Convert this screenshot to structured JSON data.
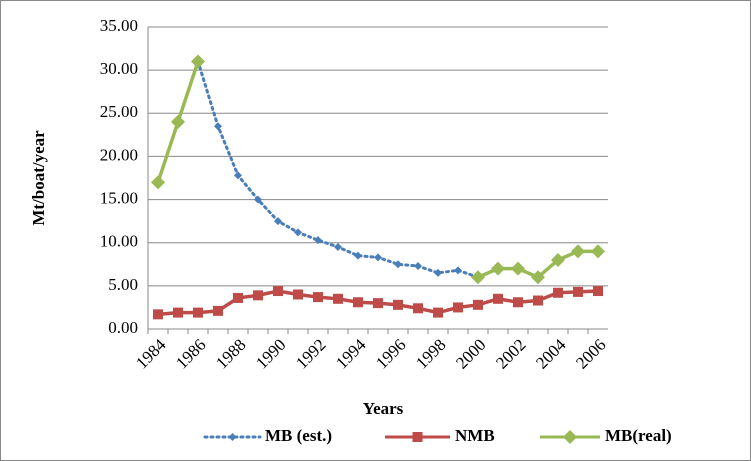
{
  "chart_data": {
    "type": "line",
    "y_label": "Mt/boat/year",
    "x_label": "Years",
    "categories": [
      "1984",
      null,
      "1986",
      null,
      "1988",
      null,
      "1990",
      null,
      "1992",
      null,
      "1994",
      null,
      "1996",
      null,
      "1998",
      null,
      "2000",
      null,
      "2002",
      null,
      "2004",
      null,
      "2006"
    ],
    "series": [
      {
        "name": "MB (est.)",
        "color": "#4a7ebb",
        "style": "dotted",
        "marker": "diamond-small",
        "values": [
          null,
          null,
          31,
          23.5,
          17.8,
          15,
          12.5,
          11.2,
          10.3,
          9.5,
          8.5,
          8.3,
          7.5,
          7.3,
          6.5,
          6.8,
          6.0,
          null,
          null,
          null,
          null,
          null,
          null
        ]
      },
      {
        "name": "NMB",
        "color": "#be4b48",
        "style": "solid",
        "marker": "square",
        "values": [
          1.7,
          1.9,
          1.9,
          2.1,
          3.6,
          3.9,
          4.4,
          4.0,
          3.7,
          3.5,
          3.1,
          3.0,
          2.8,
          2.4,
          1.9,
          2.5,
          2.8,
          3.5,
          3.1,
          3.3,
          4.2,
          4.3,
          4.4
        ]
      },
      {
        "name": "MB(real)",
        "color": "#98b954",
        "style": "solid",
        "marker": "diamond",
        "values": [
          17,
          24,
          31,
          null,
          null,
          null,
          null,
          null,
          null,
          null,
          null,
          null,
          null,
          null,
          null,
          null,
          6,
          7,
          7,
          6,
          8,
          9,
          9
        ]
      }
    ],
    "ylim": [
      0,
      35
    ],
    "yticks": [
      {
        "value": 0,
        "label": "0.00"
      },
      {
        "value": 5,
        "label": "5.00"
      },
      {
        "value": 10,
        "label": "10.00"
      },
      {
        "value": 15,
        "label": "15.00"
      },
      {
        "value": 20,
        "label": "20.00"
      },
      {
        "value": 25,
        "label": "25.00"
      },
      {
        "value": 30,
        "label": "30.00"
      },
      {
        "value": 35,
        "label": "35.00"
      }
    ],
    "grid": true,
    "legend": "bottom"
  }
}
